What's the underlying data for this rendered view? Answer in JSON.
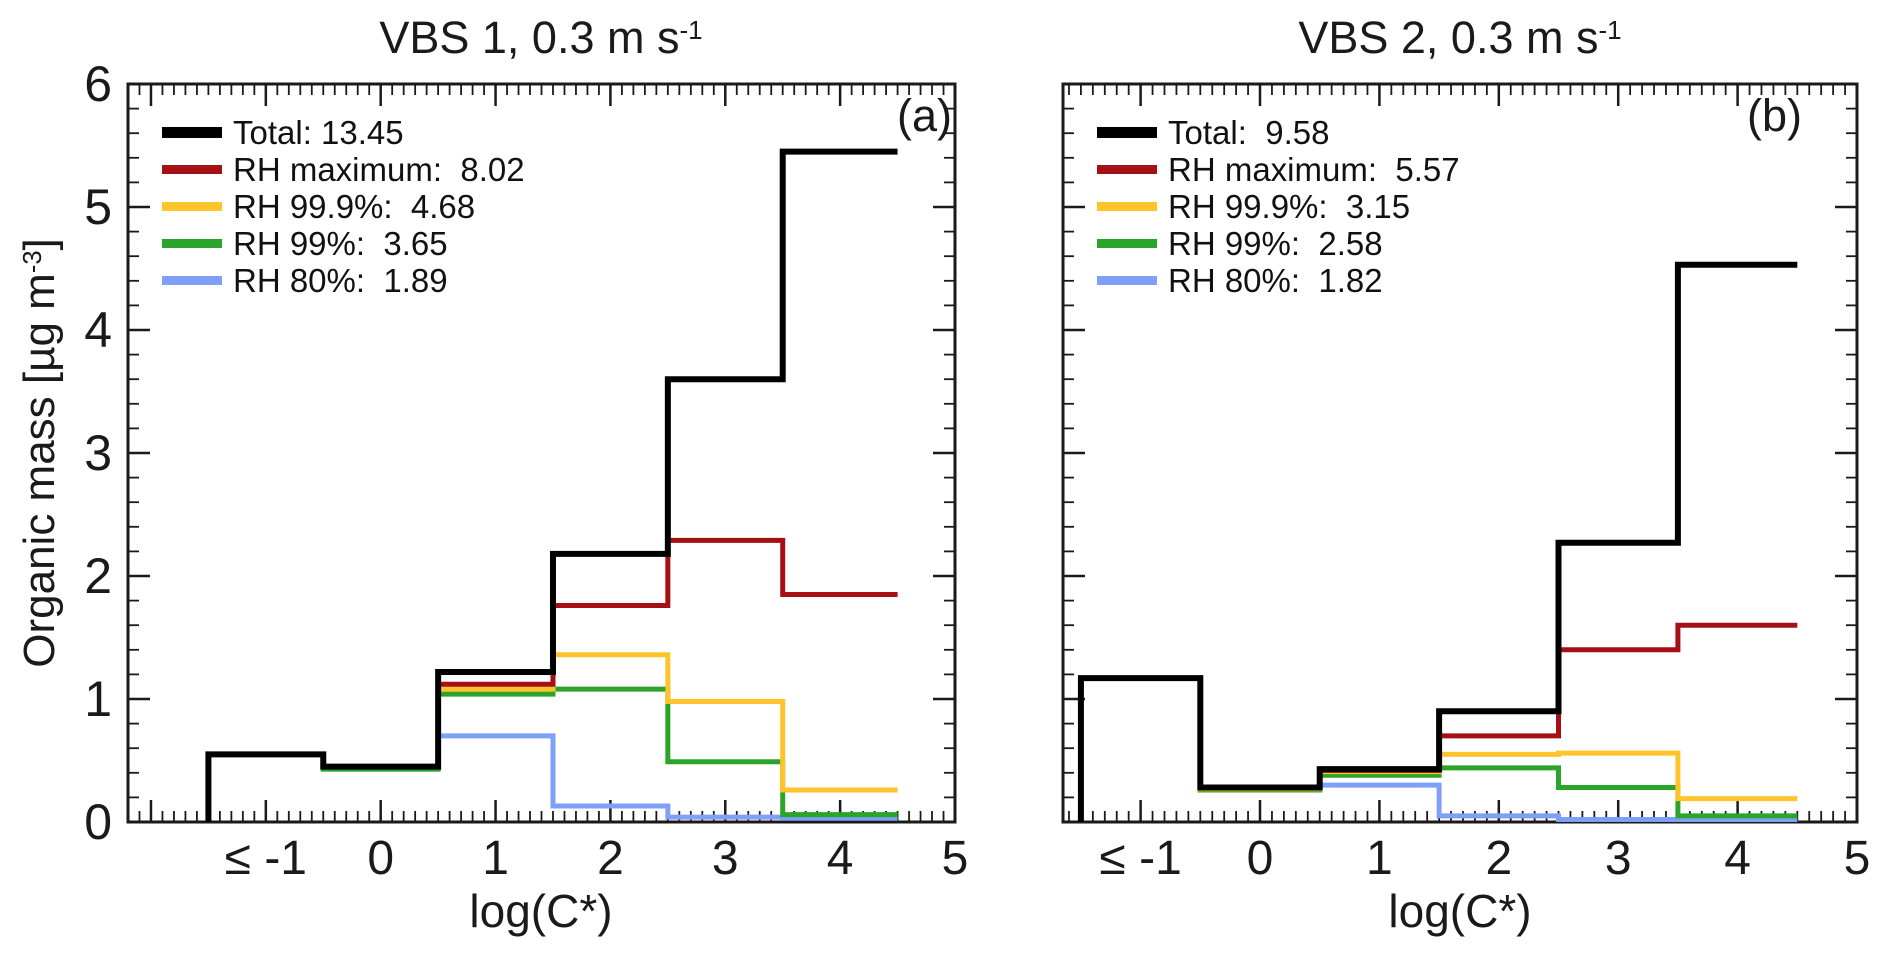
{
  "figure": {
    "background": "#ffffff",
    "ylabel": {
      "main": "Organic mass [µg m",
      "sup": "-3",
      "end": "]"
    }
  },
  "chart_data": [
    {
      "type": "line",
      "subtype": "step-histogram",
      "panel": "(a)",
      "title": {
        "main": "VBS 1, 0.3 m s",
        "sup": "-1"
      },
      "xlabel": "log(C*)",
      "ylabel": "Organic mass [µg m-3]",
      "xlim": [
        -2.2,
        5.0
      ],
      "ylim": [
        0,
        6
      ],
      "grid": false,
      "legend_position": "upper-left",
      "x_bin_edges": [
        -1.5,
        -0.5,
        0.5,
        1.5,
        2.5,
        3.5,
        4.5
      ],
      "x_tick_values": [
        -1,
        0,
        1,
        2,
        3,
        4,
        5
      ],
      "x_tick_labels": [
        "≤ -1",
        "0",
        "1",
        "2",
        "3",
        "4",
        "5"
      ],
      "y_tick_values": [
        0,
        1,
        2,
        3,
        4,
        5,
        6
      ],
      "y_tick_labels": [
        "0",
        "1",
        "2",
        "3",
        "4",
        "5",
        "6"
      ],
      "series": [
        {
          "name": "Total",
          "total": 13.45,
          "color": "#000000",
          "width": 6,
          "values": [
            0.55,
            0.45,
            1.22,
            2.18,
            3.6,
            5.45
          ]
        },
        {
          "name": "RH maximum",
          "total": 8.02,
          "color": "#A50F15",
          "width": 5,
          "values": [
            0.55,
            0.45,
            1.12,
            1.76,
            2.29,
            1.85
          ]
        },
        {
          "name": "RH 99.9%",
          "total": 4.68,
          "color": "#FFC32B",
          "width": 5,
          "values": [
            0.55,
            0.45,
            1.08,
            1.36,
            0.98,
            0.26
          ]
        },
        {
          "name": "RH 99%",
          "total": 3.65,
          "color": "#2AA52A",
          "width": 5,
          "values": [
            0.55,
            0.43,
            1.04,
            1.08,
            0.49,
            0.06
          ]
        },
        {
          "name": "RH 80%",
          "total": 1.89,
          "color": "#7FA0F8",
          "width": 5,
          "values": [
            0.55,
            0.43,
            0.7,
            0.13,
            0.04,
            0.03
          ]
        }
      ],
      "legend": [
        {
          "text": "Total: 13.45"
        },
        {
          "text": "RH maximum:  8.02"
        },
        {
          "text": "RH 99.9%:  4.68"
        },
        {
          "text": "RH 99%:  3.65"
        },
        {
          "text": "RH 80%:  1.89"
        }
      ]
    },
    {
      "type": "line",
      "subtype": "step-histogram",
      "panel": "(b)",
      "title": {
        "main": "VBS 2, 0.3 m s",
        "sup": "-1"
      },
      "xlabel": "log(C*)",
      "ylabel": "",
      "xlim": [
        -1.65,
        5.0
      ],
      "ylim": [
        0,
        6
      ],
      "grid": false,
      "legend_position": "upper-left",
      "x_bin_edges": [
        -1.5,
        -0.5,
        0.5,
        1.5,
        2.5,
        3.5,
        4.5
      ],
      "x_tick_values": [
        -1,
        0,
        1,
        2,
        3,
        4,
        5
      ],
      "x_tick_labels": [
        "≤ -1",
        "0",
        "1",
        "2",
        "3",
        "4",
        "5"
      ],
      "y_tick_values": [
        0,
        1,
        2,
        3,
        4,
        5,
        6
      ],
      "y_tick_labels": [],
      "series": [
        {
          "name": "Total",
          "total": 9.58,
          "color": "#000000",
          "width": 6,
          "values": [
            1.17,
            0.28,
            0.43,
            0.9,
            2.27,
            4.53
          ]
        },
        {
          "name": "RH maximum",
          "total": 5.57,
          "color": "#A50F15",
          "width": 5,
          "values": [
            1.17,
            0.28,
            0.42,
            0.7,
            1.4,
            1.6
          ]
        },
        {
          "name": "RH 99.9%",
          "total": 3.15,
          "color": "#FFC32B",
          "width": 5,
          "values": [
            1.17,
            0.27,
            0.41,
            0.55,
            0.56,
            0.19
          ]
        },
        {
          "name": "RH 99%",
          "total": 2.58,
          "color": "#2AA52A",
          "width": 5,
          "values": [
            1.17,
            0.26,
            0.38,
            0.44,
            0.28,
            0.05
          ]
        },
        {
          "name": "RH 80%",
          "total": 1.82,
          "color": "#7FA0F8",
          "width": 5,
          "values": [
            1.17,
            0.26,
            0.3,
            0.05,
            0.02,
            0.02
          ]
        }
      ],
      "legend": [
        {
          "text": "Total:  9.58"
        },
        {
          "text": "RH maximum:  5.57"
        },
        {
          "text": "RH 99.9%:  3.15"
        },
        {
          "text": "RH 99%:  2.58"
        },
        {
          "text": "RH 80%:  1.82"
        }
      ]
    }
  ]
}
